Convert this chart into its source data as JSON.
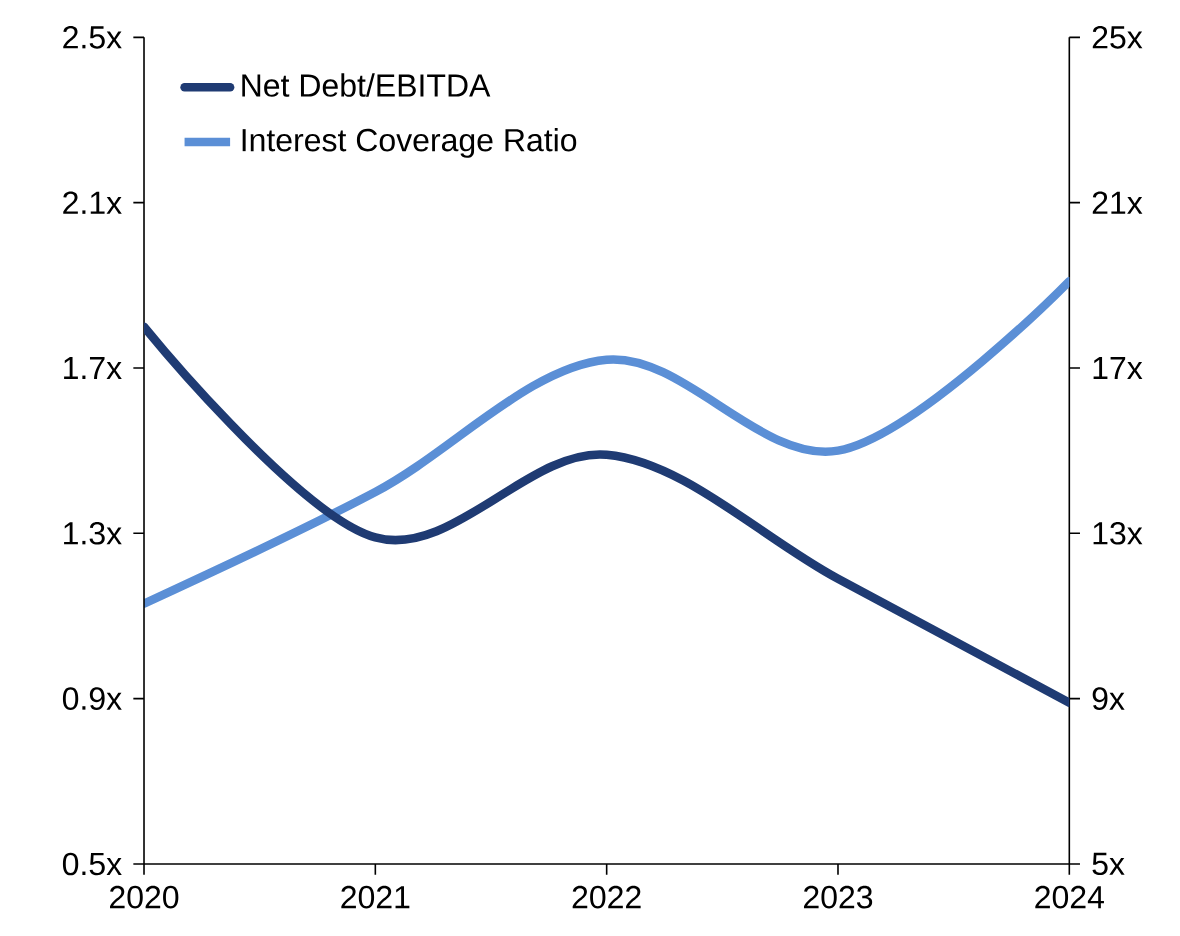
{
  "chart_data": {
    "type": "line",
    "categories": [
      "2020",
      "2021",
      "2022",
      "2023",
      "2024"
    ],
    "series": [
      {
        "name": "Net Debt/EBITDA",
        "color": "#1f3b73",
        "values": [
          1.8,
          1.29,
          1.49,
          1.19,
          0.89
        ]
      },
      {
        "name": "Interest Coverage Ratio",
        "color": "#5b8fd6",
        "axis": "y2",
        "values": [
          11.3,
          14.0,
          17.2,
          15.0,
          19.1
        ]
      }
    ],
    "ylim": [
      0.5,
      2.5
    ],
    "yticks": [
      {
        "value": 0.5,
        "label": "0.5x"
      },
      {
        "value": 0.9,
        "label": "0.9x"
      },
      {
        "value": 1.3,
        "label": "1.3x"
      },
      {
        "value": 1.7,
        "label": "1.7x"
      },
      {
        "value": 2.1,
        "label": "2.1x"
      },
      {
        "value": 2.5,
        "label": "2.5x"
      }
    ],
    "y2lim": [
      5,
      25
    ],
    "y2ticks": [
      {
        "value": 5,
        "label": "5x"
      },
      {
        "value": 9,
        "label": "9x"
      },
      {
        "value": 13,
        "label": "13x"
      },
      {
        "value": 17,
        "label": "17x"
      },
      {
        "value": 21,
        "label": "21x"
      },
      {
        "value": 25,
        "label": "25x"
      }
    ],
    "legend": "top left",
    "grid": false
  }
}
